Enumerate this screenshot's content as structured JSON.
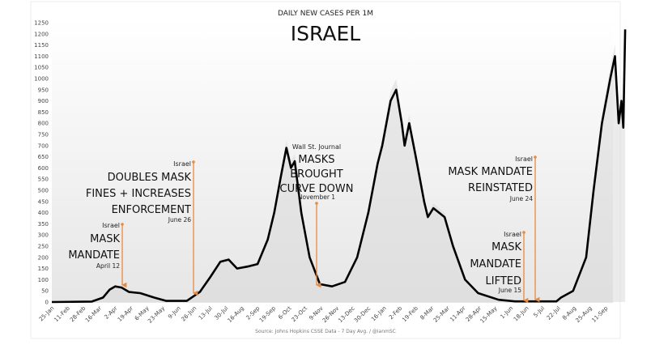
{
  "chart_data": {
    "type": "line",
    "subtitle": "DAILY NEW CASES PER 1M",
    "title": "ISRAEL",
    "source": "Source: Johns Hopkins CSSE Data - 7 Day Avg. / @ianmSC",
    "ylim": [
      0,
      1250
    ],
    "yticks": [
      0,
      50,
      100,
      150,
      200,
      250,
      300,
      350,
      400,
      450,
      500,
      550,
      600,
      650,
      700,
      750,
      800,
      850,
      900,
      950,
      1000,
      1050,
      1100,
      1150,
      1200,
      1250
    ],
    "xtick_labels": [
      "25-Jan",
      "11-Feb",
      "28-Feb",
      "16-Mar",
      "2-Apr",
      "19-Apr",
      "6-May",
      "23-May",
      "9-Jun",
      "26-Jun",
      "13-Jul",
      "30-Jul",
      "16-Aug",
      "2-Sep",
      "19-Sep",
      "6-Oct",
      "23-Oct",
      "9-Nov",
      "26-Nov",
      "13-Dec",
      "30-Dec",
      "16-Jan",
      "2-Feb",
      "19-Feb",
      "8-Mar",
      "25-Mar",
      "11-Apr",
      "28-Apr",
      "15-May",
      "1-Jun",
      "18-Jun",
      "5-Jul",
      "22-Jul",
      "8-Aug",
      "25-Aug",
      "11-Sep"
    ],
    "xtick_step_days": 17,
    "series": [
      {
        "name": "7 Day Avg.",
        "color": "#000000",
        "points": [
          [
            0,
            0
          ],
          [
            43,
            2
          ],
          [
            55,
            20
          ],
          [
            62,
            55
          ],
          [
            68,
            70
          ],
          [
            75,
            65
          ],
          [
            83,
            45
          ],
          [
            95,
            40
          ],
          [
            110,
            20
          ],
          [
            123,
            5
          ],
          [
            145,
            5
          ],
          [
            159,
            45
          ],
          [
            170,
            110
          ],
          [
            181,
            180
          ],
          [
            190,
            190
          ],
          [
            199,
            150
          ],
          [
            212,
            160
          ],
          [
            221,
            170
          ],
          [
            232,
            280
          ],
          [
            239,
            400
          ],
          [
            246,
            560
          ],
          [
            252,
            690
          ],
          [
            257,
            600
          ],
          [
            261,
            630
          ],
          [
            268,
            400
          ],
          [
            277,
            200
          ],
          [
            288,
            80
          ],
          [
            301,
            70
          ],
          [
            315,
            90
          ],
          [
            328,
            200
          ],
          [
            340,
            400
          ],
          [
            350,
            620
          ],
          [
            355,
            700
          ],
          [
            364,
            900
          ],
          [
            370,
            950
          ],
          [
            376,
            800
          ],
          [
            379,
            700
          ],
          [
            384,
            800
          ],
          [
            391,
            650
          ],
          [
            400,
            450
          ],
          [
            404,
            380
          ],
          [
            410,
            420
          ],
          [
            422,
            380
          ],
          [
            431,
            250
          ],
          [
            444,
            100
          ],
          [
            458,
            40
          ],
          [
            480,
            10
          ],
          [
            498,
            3
          ],
          [
            542,
            3
          ],
          [
            547,
            20
          ],
          [
            560,
            50
          ],
          [
            574,
            200
          ],
          [
            582,
            500
          ],
          [
            591,
            800
          ],
          [
            600,
            1000
          ],
          [
            605,
            1100
          ],
          [
            609,
            800
          ],
          [
            612,
            900
          ],
          [
            614,
            780
          ],
          [
            616,
            1220
          ]
        ]
      }
    ],
    "annotations": [
      {
        "small": "Israel",
        "lines": [
          "MASK",
          "MANDATE"
        ],
        "date": "April 12"
      },
      {
        "small": "Israel",
        "lines": [
          "DOUBLES MASK",
          "FINES + INCREASES",
          "ENFORCEMENT"
        ],
        "date": "June 26"
      },
      {
        "small": "Wall St. Journal",
        "lines": [
          "MASKS",
          "BROUGHT",
          "CURVE DOWN"
        ],
        "date": "November 1"
      },
      {
        "small": "Israel",
        "lines": [
          "MASK MANDATE",
          "REINSTATED"
        ],
        "date": "June 24"
      },
      {
        "small": "Israel",
        "lines": [
          "MASK",
          "MANDATE",
          "LIFTED"
        ],
        "date": "June 15"
      }
    ],
    "annotation_color": "#e8893c",
    "grid": false
  }
}
